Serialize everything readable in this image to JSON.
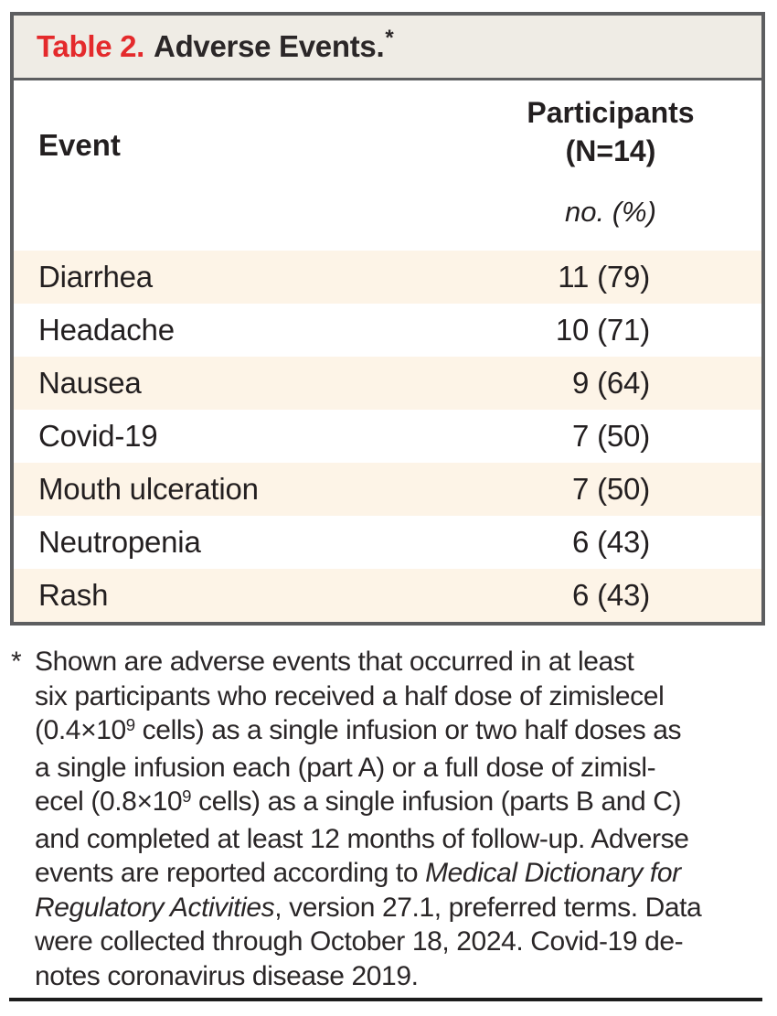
{
  "table": {
    "title": {
      "label": "Table 2.",
      "text": "Adverse Events.",
      "marker": "*"
    },
    "columns": {
      "event": "Event",
      "participants_line1": "Participants",
      "participants_line2": "(N=14)",
      "unit": "no. (%)"
    },
    "rows": [
      {
        "event": "Diarrhea",
        "value": "11 (79)"
      },
      {
        "event": "Headache",
        "value": "10 (71)"
      },
      {
        "event": "Nausea",
        "value": "9 (64)"
      },
      {
        "event": "Covid-19",
        "value": "7 (50)"
      },
      {
        "event": "Mouth ulceration",
        "value": "7 (50)"
      },
      {
        "event": "Neutropenia",
        "value": "6 (43)"
      },
      {
        "event": "Rash",
        "value": "6 (43)"
      }
    ]
  },
  "footnote": {
    "marker": "*",
    "lines": [
      [
        {
          "t": "Shown are adverse events that occurred in at least"
        }
      ],
      [
        {
          "t": "six participants who received a half dose of zimislecel"
        }
      ],
      [
        {
          "t": "(0.4×10"
        },
        {
          "t": "9",
          "sup": true
        },
        {
          "t": " cells) as a single infusion or two half doses as"
        }
      ],
      [
        {
          "t": "a single infusion each (part A) or a full dose of zimisl-"
        }
      ],
      [
        {
          "t": "ecel (0.8×10"
        },
        {
          "t": "9",
          "sup": true
        },
        {
          "t": " cells) as a single infusion (parts B and C)"
        }
      ],
      [
        {
          "t": "and completed at least 12 months of follow-up. Adverse"
        }
      ],
      [
        {
          "t": "events are reported according to "
        },
        {
          "t": "Medical Dictionary for",
          "i": true
        }
      ],
      [
        {
          "t": "Regulatory Activities",
          "i": true
        },
        {
          "t": ", version 27.1, preferred terms. Data"
        }
      ],
      [
        {
          "t": "were collected through October 18, 2024. Covid-19 de-"
        }
      ],
      [
        {
          "t": "notes coronavirus disease 2019."
        }
      ]
    ]
  },
  "colors": {
    "accent_red": "#e42a2c",
    "title_band_bg": "#efece5",
    "row_shade": "#fdf4e7",
    "border_gray": "#5d5e60",
    "text_dark": "#231f20",
    "rule_black": "#1c1c1c"
  }
}
